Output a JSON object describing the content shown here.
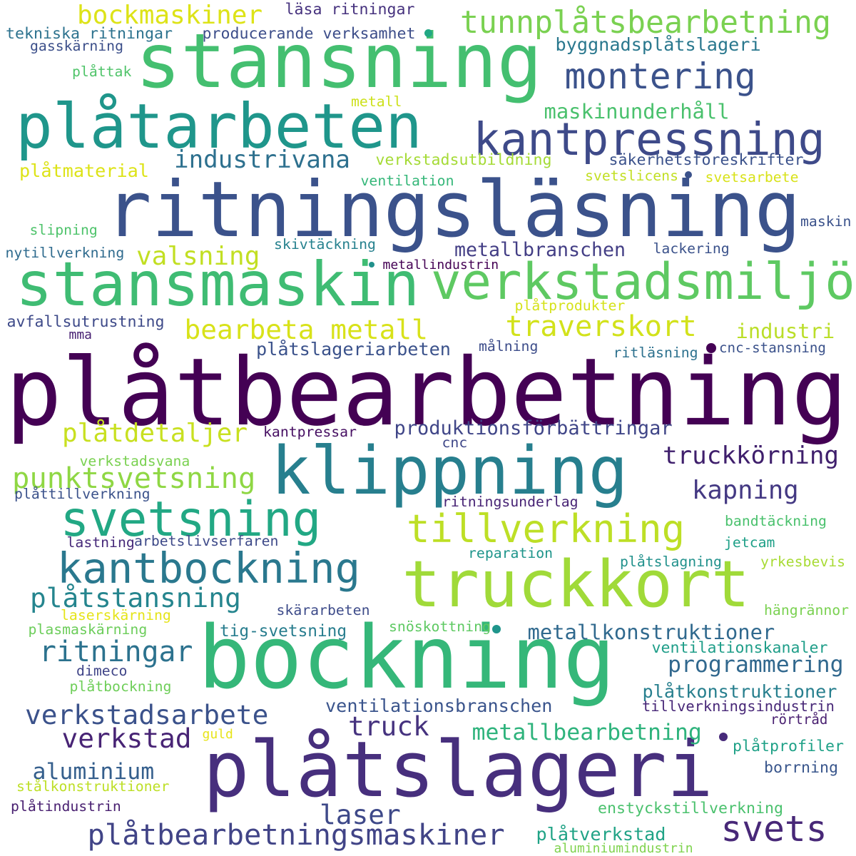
{
  "words": [
    {
      "text": "plåtbearbetning",
      "color": "#440154"
    },
    {
      "text": "ritningsläsning",
      "color": "#3b528b"
    },
    {
      "text": "bockning",
      "color": "#35b779"
    },
    {
      "text": "plåtslageri",
      "color": "#472f7d"
    },
    {
      "text": "stansning",
      "color": "#44bf70"
    },
    {
      "text": "stansmaskin",
      "color": "#3fbc73"
    },
    {
      "text": "plåtarbeten",
      "color": "#1f968b"
    },
    {
      "text": "truckkort",
      "color": "#a0da39"
    },
    {
      "text": "klippning",
      "color": "#277f8e"
    },
    {
      "text": "verkstadsmiljö",
      "color": "#5ec962"
    },
    {
      "text": "kantpressning",
      "color": "#3e4a89"
    },
    {
      "text": "svetsning",
      "color": "#22a884"
    },
    {
      "text": "kantbockning",
      "color": "#2a788e"
    },
    {
      "text": "tillverkning",
      "color": "#bddf26"
    },
    {
      "text": "montering",
      "color": "#3b528b"
    },
    {
      "text": "tunnplåtsbearbetning",
      "color": "#7ad151"
    },
    {
      "text": "svets",
      "color": "#482878"
    },
    {
      "text": "plåtbearbetningsmaskiner",
      "color": "#414487"
    },
    {
      "text": "verkstadsarbete",
      "color": "#3b528b"
    },
    {
      "text": "punktsvetsning",
      "color": "#8fd744"
    },
    {
      "text": "ritningar",
      "color": "#2c728e"
    },
    {
      "text": "traverskort",
      "color": "#d2e21b"
    },
    {
      "text": "bearbeta metall",
      "color": "#d8e219"
    },
    {
      "text": "plåtstansning",
      "color": "#25858e"
    },
    {
      "text": "valsning",
      "color": "#c2df23"
    },
    {
      "text": "bockmaskiner",
      "color": "#dde318"
    },
    {
      "text": "plåtdetaljer",
      "color": "#c8e020"
    },
    {
      "text": "metallbearbetning",
      "color": "#2eb37c"
    },
    {
      "text": "industrivana",
      "color": "#2d708e"
    },
    {
      "text": "verkstad",
      "color": "#482475"
    },
    {
      "text": "truckkörning",
      "color": "#3f1f6c"
    },
    {
      "text": "kapning",
      "color": "#443983"
    },
    {
      "text": "laser",
      "color": "#3e4989"
    },
    {
      "text": "aluminium",
      "color": "#355f8d"
    },
    {
      "text": "truck",
      "color": "#46337f"
    },
    {
      "text": "metallbranschen",
      "color": "#433e85"
    },
    {
      "text": "metallkonstruktioner",
      "color": "#30698e"
    },
    {
      "text": "programmering",
      "color": "#31688e"
    },
    {
      "text": "industri",
      "color": "#bade28"
    },
    {
      "text": "maskinunderhåll",
      "color": "#4ac16d"
    },
    {
      "text": "produktionsförbättringar",
      "color": "#404688"
    },
    {
      "text": "plåtkonstruktioner",
      "color": "#277f8e"
    },
    {
      "text": "ventilationsbranschen",
      "color": "#3a548c"
    },
    {
      "text": "plåtverkstad",
      "color": "#20a386"
    },
    {
      "text": "byggnadsplåtslageri",
      "color": "#2a788e"
    },
    {
      "text": "plåtslageriarbeten",
      "color": "#3b528b"
    },
    {
      "text": "tig-svetsning",
      "color": "#287d8e"
    },
    {
      "text": "plåtmaterial",
      "color": "#dde318"
    },
    {
      "text": "enstyckstillverkning",
      "color": "#4ac16d"
    },
    {
      "text": "ventilationskanaler",
      "color": "#1f9e89"
    },
    {
      "text": "tillverkningsindustrin",
      "color": "#482878"
    },
    {
      "text": "verkstadsutbildning",
      "color": "#a5db36"
    },
    {
      "text": "säkerhetsföreskrifter",
      "color": "#3b528b"
    },
    {
      "text": "producerande verksamhet",
      "color": "#3d4e8a"
    },
    {
      "text": "tekniska ritningar",
      "color": "#2c728e"
    },
    {
      "text": "läsa ritningar",
      "color": "#46327e"
    },
    {
      "text": "avfallsutrustning",
      "color": "#3e4a89"
    },
    {
      "text": "skärarbeten",
      "color": "#3e4c8a"
    },
    {
      "text": "snöskottning",
      "color": "#5ec962"
    },
    {
      "text": "cnc-stansning",
      "color": "#3b528b"
    },
    {
      "text": "plåtprofiler",
      "color": "#1fa187"
    },
    {
      "text": "borrning",
      "color": "#39568c"
    },
    {
      "text": "aluminiumindustrin",
      "color": "#7fd34e"
    },
    {
      "text": "plåtindustrin",
      "color": "#481f70"
    },
    {
      "text": "stålkonstruktioner",
      "color": "#bddf26"
    },
    {
      "text": "plasmaskärning",
      "color": "#6ccd5a"
    },
    {
      "text": "laserskärning",
      "color": "#e5e419"
    },
    {
      "text": "plåtbockning",
      "color": "#6ece58"
    },
    {
      "text": "dimeco",
      "color": "#404588"
    },
    {
      "text": "lastning",
      "color": "#472a7a"
    },
    {
      "text": "arbetslivserfaren",
      "color": "#3e4a89"
    },
    {
      "text": "reparation",
      "color": "#1f958b"
    },
    {
      "text": "jetcam",
      "color": "#1fa088"
    },
    {
      "text": "yrkesbevis",
      "color": "#a8db34"
    },
    {
      "text": "plåtslagning",
      "color": "#21918c"
    },
    {
      "text": "bandtäckning",
      "color": "#4ac16d"
    },
    {
      "text": "ritningsunderlag",
      "color": "#482475"
    },
    {
      "text": "plåttillverkning",
      "color": "#3b528b"
    },
    {
      "text": "verkstadsvana",
      "color": "#7ad151"
    },
    {
      "text": "cnc",
      "color": "#3f4788"
    },
    {
      "text": "kantpressar",
      "color": "#471063"
    },
    {
      "text": "plåtprodukter",
      "color": "#d5e21a"
    },
    {
      "text": "målning",
      "color": "#3d4d8a"
    },
    {
      "text": "ritläsning",
      "color": "#2d718e"
    },
    {
      "text": "mma",
      "color": "#482173"
    },
    {
      "text": "metallindustrin",
      "color": "#440154"
    },
    {
      "text": "skivtäckning",
      "color": "#26818e"
    },
    {
      "text": "lackering",
      "color": "#3b528b"
    },
    {
      "text": "nytillverkning",
      "color": "#2f6b8e"
    },
    {
      "text": "slipning",
      "color": "#4ec36b"
    },
    {
      "text": "maskin",
      "color": "#3b528b"
    },
    {
      "text": "ventilation",
      "color": "#35b779"
    },
    {
      "text": "svetslicens",
      "color": "#c2df23"
    },
    {
      "text": "svetsarbete",
      "color": "#d8e219"
    },
    {
      "text": "metall",
      "color": "#cde11d"
    },
    {
      "text": "plåttak",
      "color": "#50c46a"
    },
    {
      "text": "gasskärning",
      "color": "#3c4f8a"
    },
    {
      "text": "guld",
      "color": "#e7e419"
    },
    {
      "text": "rörtråd",
      "color": "#481f70"
    },
    {
      "text": "hängrännor",
      "color": "#7ad151"
    }
  ]
}
